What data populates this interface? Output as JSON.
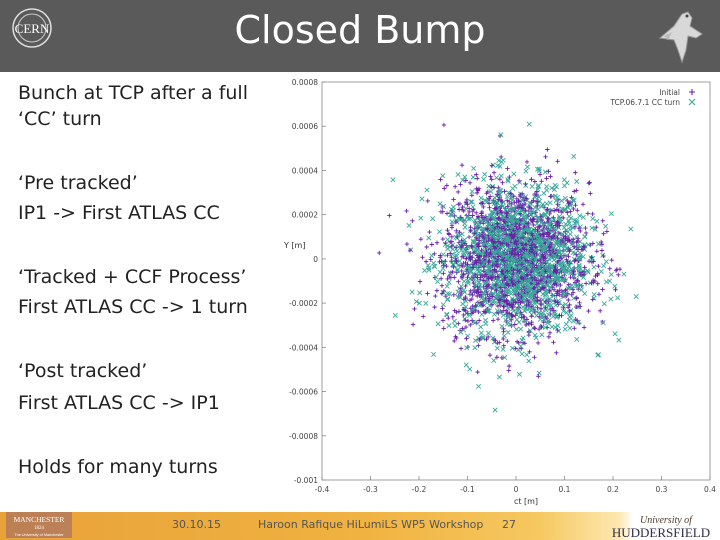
{
  "slide": {
    "title": "Closed Bump",
    "bullets": [
      "Bunch at TCP after a full",
      "‘CC’ turn",
      "‘Pre tracked’",
      "IP1 -> First ATLAS CC",
      "‘Tracked + CCF Process’",
      "First ATLAS CC -> 1 turn",
      "‘Post tracked’",
      "First ATLAS CC -> IP1",
      "Holds for many turns"
    ],
    "footer": {
      "date": "30.10.15",
      "author": "Haroon Rafique HiLumiLS WP5 Workshop",
      "page": "27"
    },
    "logos": {
      "cern": "CERN",
      "manchester": "MANCHESTER",
      "manchester_year": "1824",
      "manchester_sub": "The University of Manchester",
      "hud_line1": "University of",
      "hud_line2": "HUDDERSFIELD"
    }
  },
  "colors": {
    "header": "#5a5a5a",
    "series1": "#6a1fa8",
    "series2": "#3aa89a",
    "footer": "#f0b240"
  },
  "chart_data": {
    "type": "scatter",
    "xlabel": "ct [m]",
    "ylabel": "Y [m]",
    "xlim": [
      -0.4,
      0.4
    ],
    "ylim": [
      -0.001,
      0.0008
    ],
    "xticks": [
      "-0.4",
      "-0.3",
      "-0.2",
      "-0.1",
      "0",
      "0.1",
      "0.2",
      "0.3",
      "0.4"
    ],
    "yticks": [
      "0.0008",
      "0.0006",
      "0.0004",
      "0.0002",
      "0",
      "-0.0002",
      "-0.0004",
      "-0.0006",
      "-0.0008",
      "-0.001"
    ],
    "legend_position": "top-right",
    "series": [
      {
        "name": "Initial",
        "marker": "+",
        "color": "#6a1fa8",
        "distribution": {
          "x_center": 0.0,
          "x_sigma": 0.075,
          "y_center": 0.0,
          "y_sigma": 0.00017
        }
      },
      {
        "name": "TCP.06.7.1 CC turn",
        "marker": "x",
        "color": "#3aa89a",
        "distribution": {
          "x_center": 0.0,
          "x_sigma": 0.075,
          "y_center": 0.0,
          "y_sigma": 0.00017
        }
      }
    ]
  }
}
